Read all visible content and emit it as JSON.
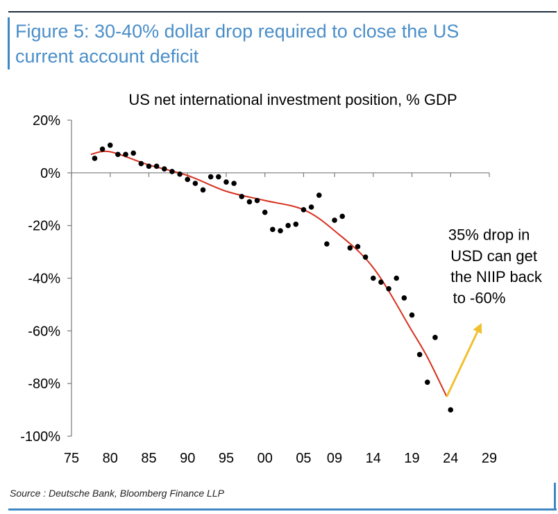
{
  "figure": {
    "title_line1": "Figure 5: 30-40% dollar drop required to close the US",
    "title_line2": "current account deficit",
    "source": "Source : Deutsche Bank, Bloomberg Finance LLP"
  },
  "colors": {
    "title": "#4a8ec9",
    "accent": "#3d88c4",
    "rule": "#1f2d3d",
    "trend": "#d7301f",
    "arrow": "#f0c030",
    "points": "#000000"
  },
  "chart_data": {
    "type": "scatter",
    "title": "US net international investment position, % GDP",
    "xlabel": "",
    "ylabel": "",
    "xlim": [
      1975,
      2029
    ],
    "ylim": [
      -100,
      20
    ],
    "x_ticks": [
      {
        "value": 1975,
        "label": "75"
      },
      {
        "value": 1980,
        "label": "80"
      },
      {
        "value": 1985,
        "label": "85"
      },
      {
        "value": 1990,
        "label": "90"
      },
      {
        "value": 1995,
        "label": "95"
      },
      {
        "value": 2000,
        "label": "00"
      },
      {
        "value": 2005,
        "label": "05"
      },
      {
        "value": 2009,
        "label": "09"
      },
      {
        "value": 2014,
        "label": "14"
      },
      {
        "value": 2019,
        "label": "19"
      },
      {
        "value": 2024,
        "label": "24"
      },
      {
        "value": 2029,
        "label": "29"
      }
    ],
    "y_ticks": [
      {
        "value": 20,
        "label": "20%"
      },
      {
        "value": 0,
        "label": "0%"
      },
      {
        "value": -20,
        "label": "-20%"
      },
      {
        "value": -40,
        "label": "-40%"
      },
      {
        "value": -60,
        "label": "-60%"
      },
      {
        "value": -80,
        "label": "-80%"
      },
      {
        "value": -100,
        "label": "-100%"
      }
    ],
    "grid": false,
    "series": [
      {
        "kind": "scatter",
        "x": [
          1978,
          1979,
          1980,
          1981,
          1982,
          1983,
          1984,
          1985,
          1986,
          1987,
          1988,
          1989,
          1990,
          1991,
          1992,
          1993,
          1994,
          1995,
          1996,
          1997,
          1998,
          1999,
          2000,
          2001,
          2002,
          2003,
          2004,
          2005,
          2006,
          2007,
          2008,
          2009,
          2010,
          2011,
          2012,
          2013,
          2014,
          2015,
          2016,
          2017,
          2018,
          2019,
          2020,
          2021,
          2022,
          2024
        ],
        "y": [
          5.5,
          9,
          10.5,
          7,
          7,
          7.5,
          3.5,
          2.5,
          2.5,
          1.5,
          0.5,
          -0.5,
          -2.5,
          -4,
          -6.5,
          -1.5,
          -1.5,
          -3.5,
          -4,
          -9,
          -11,
          -10.5,
          -15,
          -21.5,
          -22,
          -20,
          -19.5,
          -14,
          -13,
          -8.5,
          -27,
          -18,
          -16.5,
          -28.5,
          -28,
          -32,
          -40,
          -41.5,
          -44,
          -40,
          -47.5,
          -54,
          -69,
          -79.5,
          -62.5,
          -90
        ]
      },
      {
        "kind": "trend",
        "x": [
          1977.5,
          1980,
          1985,
          1990,
          1995,
          2000,
          2005,
          2009,
          2014,
          2019,
          2021,
          2023.5
        ],
        "y": [
          7,
          8,
          3,
          -1,
          -7,
          -10.5,
          -14,
          -22,
          -36,
          -60,
          -70,
          -85
        ]
      }
    ],
    "arrow": {
      "from": [
        2023.5,
        -85
      ],
      "to": [
        2028,
        -57
      ]
    },
    "annotations": [
      {
        "text": "35% drop in",
        "x": 2023.7,
        "y": -25.5
      },
      {
        "text": "USD can get",
        "x": 2024,
        "y": -33.5
      },
      {
        "text": "the NIIP back",
        "x": 2024,
        "y": -41.5
      },
      {
        "text": "to -60%",
        "x": 2024.3,
        "y": -49.5
      }
    ]
  }
}
